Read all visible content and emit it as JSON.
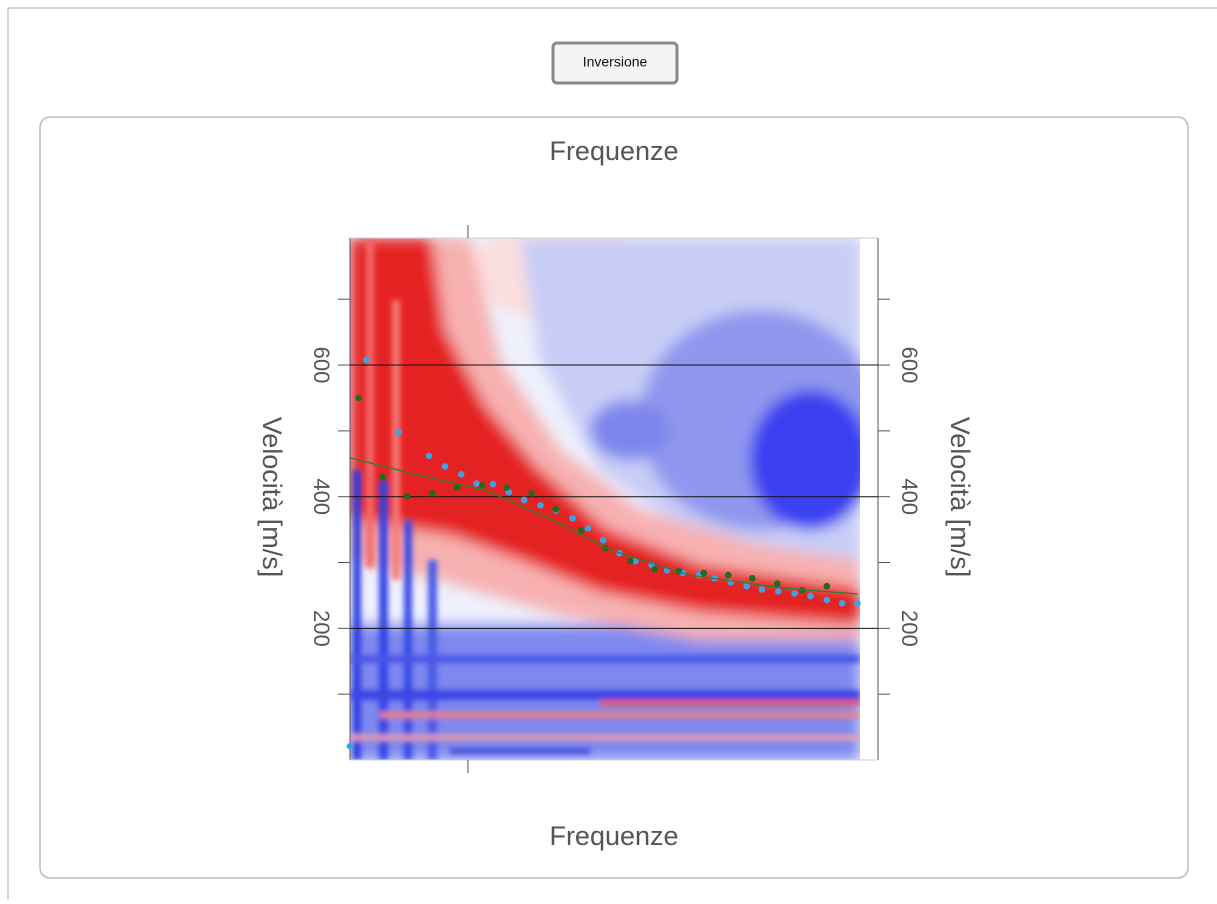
{
  "button": {
    "label": "Inversione"
  },
  "chart_data": {
    "type": "scatter",
    "title": "Frequenze",
    "xlabel": "Frequenze",
    "ylabel": "Velocità [m/s]",
    "xlim": [
      0,
      100
    ],
    "x_tick_marks": [
      23.1
    ],
    "ylim": [
      0,
      793
    ],
    "yticks": [
      200,
      400,
      600
    ],
    "minor_yticks": [
      100,
      300,
      500,
      700
    ],
    "grid": true,
    "series": [
      {
        "style": "dots",
        "color": "#3fa0e8",
        "x": [
          0,
          3.2,
          9.5,
          15.5,
          18.6,
          21.8,
          24.8,
          28.0,
          31.1,
          34.1,
          37.3,
          40.3,
          43.6,
          46.6,
          49.6,
          52.8,
          55.9,
          59.1,
          62.1,
          65.2,
          68.4,
          71.4,
          74.6,
          77.7,
          80.7,
          83.9,
          87.1,
          90.2,
          93.4,
          96.4,
          99.4
        ],
        "values": [
          21,
          608,
          498,
          462,
          446,
          434,
          420,
          419,
          407,
          395,
          387,
          379,
          367,
          352,
          334,
          314,
          302,
          296,
          288,
          284,
          281,
          276,
          270,
          264,
          259,
          256,
          253,
          249,
          243,
          238,
          238
        ]
      },
      {
        "style": "dots",
        "color": "#1f6b1f",
        "x": [
          1.7,
          6.4,
          11.2,
          16.1,
          21.0,
          25.9,
          30.7,
          35.6,
          40.3,
          45.3,
          50.0,
          54.9,
          59.7,
          64.4,
          69.3,
          74.1,
          78.8,
          83.7,
          88.6,
          93.4
        ],
        "values": [
          550,
          430,
          401,
          405,
          414,
          417,
          414,
          405,
          381,
          349,
          322,
          302,
          290,
          287,
          284,
          281,
          276,
          268,
          258,
          264
        ]
      },
      {
        "style": "line",
        "color": "#2e7d32",
        "x": [
          0,
          13.3,
          26.5,
          39.8,
          51.1,
          66.3,
          85.2,
          99.4
        ],
        "values": [
          459,
          433,
          410,
          364,
          319,
          281,
          261,
          252
        ]
      }
    ]
  }
}
